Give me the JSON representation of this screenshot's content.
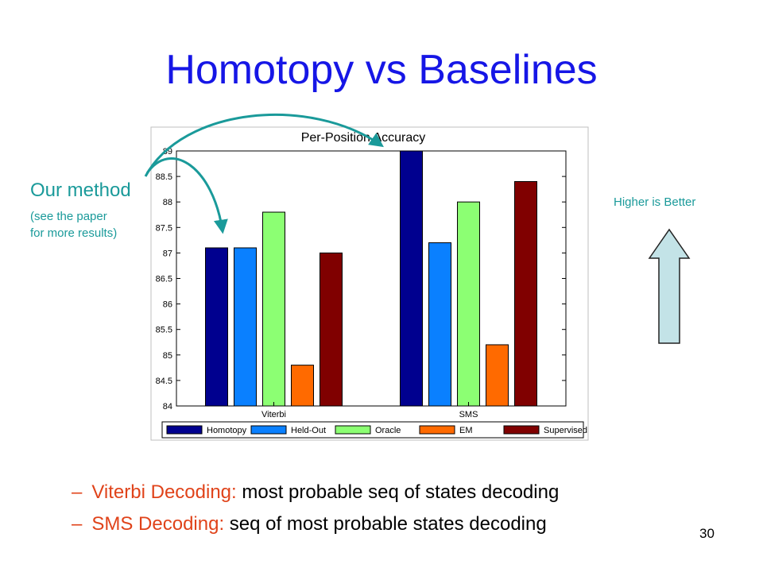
{
  "slide": {
    "title": "Homotopy vs Baselines",
    "callout_title": "Our method",
    "callout_note_line1": "(see the paper",
    "callout_note_line2": "for more results)",
    "higher_label": "Higher is Better",
    "bullets": [
      {
        "dash": "–",
        "term": "Viterbi Decoding:",
        "text": " most probable seq of states decoding"
      },
      {
        "dash": "–",
        "term": "SMS Decoding:",
        "text": " seq of most probable states decoding"
      }
    ],
    "page_number": "30"
  },
  "colors": {
    "title": "#1616e6",
    "callout": "#1a9a9a",
    "bullet_term": "#e0431a",
    "arrow_fill": "#c3e3e7"
  },
  "chart_data": {
    "type": "bar",
    "title": "Per-Position Accuracy",
    "categories": [
      "Viterbi",
      "SMS"
    ],
    "series": [
      {
        "name": "Homotopy",
        "color": "#00008f",
        "values": [
          87.1,
          89.0
        ]
      },
      {
        "name": "Held-Out",
        "color": "#0a80ff",
        "values": [
          87.1,
          87.2
        ]
      },
      {
        "name": "Oracle",
        "color": "#8cff73",
        "values": [
          87.8,
          88.0
        ]
      },
      {
        "name": "EM",
        "color": "#ff6a00",
        "values": [
          84.8,
          85.2
        ]
      },
      {
        "name": "Supervised",
        "color": "#800000",
        "values": [
          87.0,
          88.4
        ]
      }
    ],
    "ylim": [
      84,
      89
    ],
    "yticks": [
      "84",
      "84.5",
      "85",
      "85.5",
      "86",
      "86.5",
      "87",
      "87.5",
      "88",
      "88.5",
      "89"
    ],
    "grid": false,
    "legend": "bottom"
  }
}
